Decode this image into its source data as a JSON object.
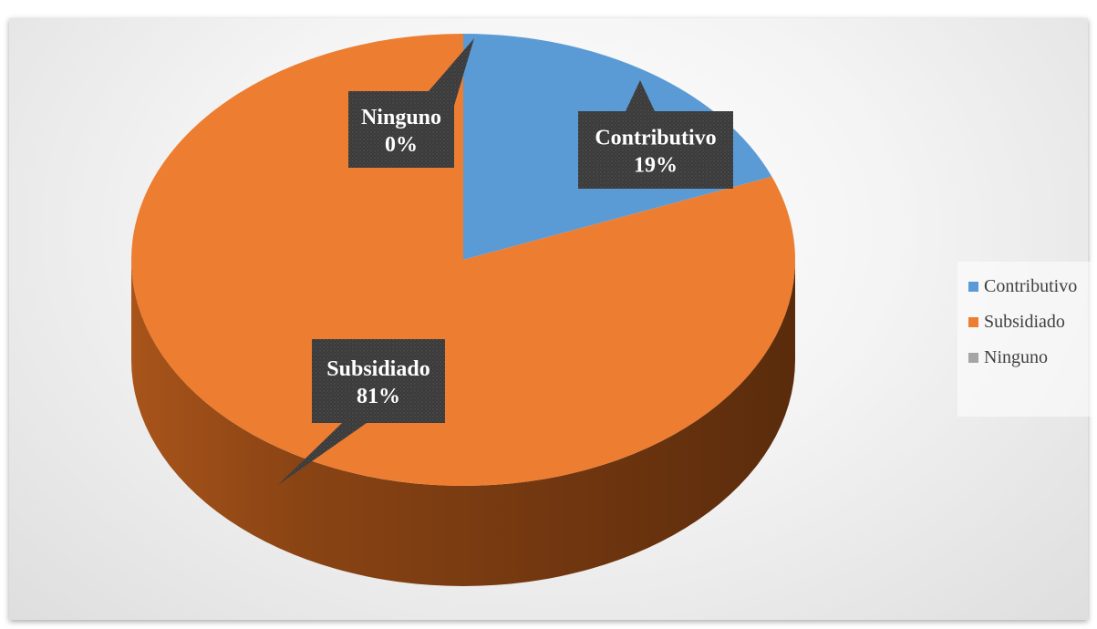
{
  "chart_data": {
    "type": "pie",
    "style": "3d",
    "categories": [
      "Contributivo",
      "Subsidiado",
      "Ninguno"
    ],
    "values": [
      19,
      81,
      0
    ],
    "data_labels": [
      {
        "category": "Contributivo",
        "percent": "19%"
      },
      {
        "category": "Subsidiado",
        "percent": "81%"
      },
      {
        "category": "Ninguno",
        "percent": "0%"
      }
    ],
    "colors": [
      "#5b9bd5",
      "#ed7d31",
      "#a5a5a5"
    ],
    "legend": {
      "position": "right",
      "items": [
        "Contributivo",
        "Subsidiado",
        "Ninguno"
      ]
    },
    "title": ""
  }
}
